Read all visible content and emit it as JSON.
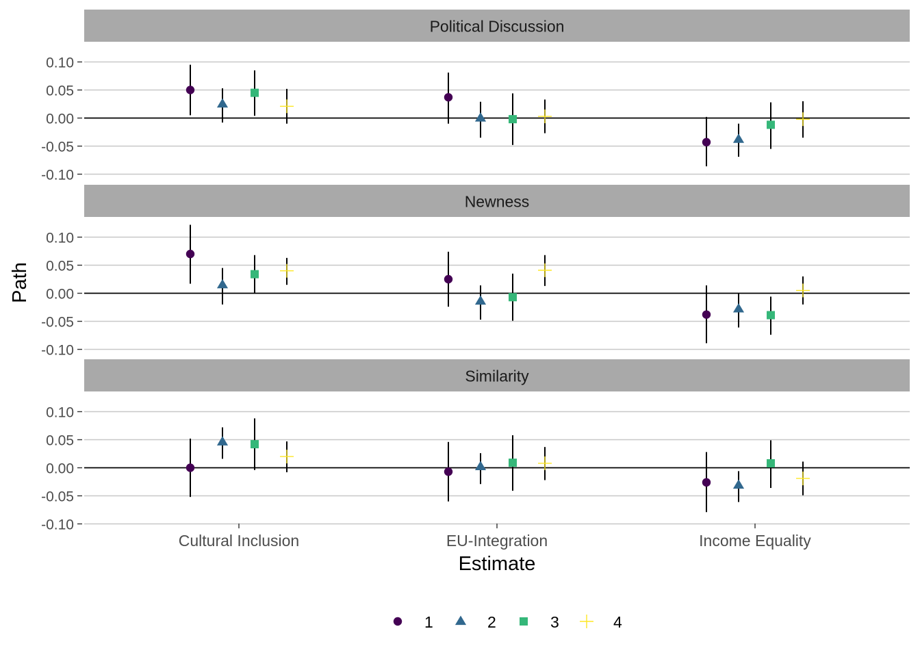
{
  "chart_data": {
    "type": "scatter",
    "subtype": "point-range facets",
    "xlabel": "Estimate",
    "ylabel": "Path",
    "categories": [
      "Cultural Inclusion",
      "EU-Integration",
      "Income Equality"
    ],
    "ylim": [
      -0.1,
      0.1
    ],
    "yticks": [
      "0.10",
      "0.05",
      "0.00",
      "-0.05",
      "-0.10"
    ],
    "ytick_values": [
      0.1,
      0.05,
      0.0,
      -0.05,
      -0.1
    ],
    "legend_position": "bottom",
    "series": [
      {
        "name": "1",
        "color": "#440154",
        "shape": "circle"
      },
      {
        "name": "2",
        "color": "#31688E",
        "shape": "triangle"
      },
      {
        "name": "3",
        "color": "#35B779",
        "shape": "square"
      },
      {
        "name": "4",
        "color": "#FDE725",
        "shape": "plus"
      }
    ],
    "facets": [
      {
        "title": "Political Discussion",
        "points": [
          [
            [
              0.05,
              0.005,
              0.095
            ],
            [
              0.025,
              -0.008,
              0.053
            ],
            [
              0.045,
              0.004,
              0.085
            ],
            [
              0.021,
              -0.01,
              0.052
            ]
          ],
          [
            [
              0.037,
              -0.01,
              0.081
            ],
            [
              0.0,
              -0.035,
              0.029
            ],
            [
              -0.002,
              -0.048,
              0.044
            ],
            [
              0.003,
              -0.027,
              0.033
            ]
          ],
          [
            [
              -0.043,
              -0.086,
              0.002
            ],
            [
              -0.038,
              -0.069,
              -0.01
            ],
            [
              -0.012,
              -0.055,
              0.028
            ],
            [
              -0.002,
              -0.035,
              0.03
            ]
          ]
        ]
      },
      {
        "title": "Newness",
        "points": [
          [
            [
              0.07,
              0.017,
              0.122
            ],
            [
              0.015,
              -0.02,
              0.045
            ],
            [
              0.034,
              0.0,
              0.068
            ],
            [
              0.04,
              0.015,
              0.063
            ]
          ],
          [
            [
              0.025,
              -0.024,
              0.074
            ],
            [
              -0.014,
              -0.047,
              0.014
            ],
            [
              -0.007,
              -0.049,
              0.035
            ],
            [
              0.041,
              0.013,
              0.068
            ]
          ],
          [
            [
              -0.038,
              -0.089,
              0.014
            ],
            [
              -0.028,
              -0.061,
              0.0
            ],
            [
              -0.039,
              -0.074,
              -0.006
            ],
            [
              0.005,
              -0.02,
              0.03
            ]
          ]
        ]
      },
      {
        "title": "Similarity",
        "points": [
          [
            [
              0.0,
              -0.052,
              0.052
            ],
            [
              0.046,
              0.016,
              0.072
            ],
            [
              0.042,
              -0.004,
              0.088
            ],
            [
              0.02,
              -0.008,
              0.047
            ]
          ],
          [
            [
              -0.007,
              -0.06,
              0.046
            ],
            [
              0.002,
              -0.029,
              0.026
            ],
            [
              0.009,
              -0.041,
              0.058
            ],
            [
              0.008,
              -0.022,
              0.037
            ]
          ],
          [
            [
              -0.026,
              -0.079,
              0.028
            ],
            [
              -0.031,
              -0.061,
              -0.006
            ],
            [
              0.008,
              -0.036,
              0.049
            ],
            [
              -0.019,
              -0.049,
              0.011
            ]
          ]
        ]
      }
    ]
  }
}
